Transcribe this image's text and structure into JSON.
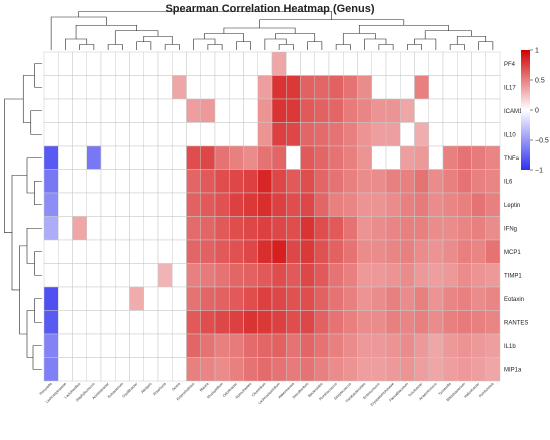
{
  "chart_data": {
    "type": "heatmap",
    "title": "Spearman Correlation Heatmap (Genus)",
    "rows": [
      "PF4",
      "IL17",
      "ICAM1",
      "IL10",
      "TNFa",
      "IL6",
      "Leptin",
      "IFNg",
      "MCP1",
      "TIMP1",
      "Eotaxin",
      "RANTES",
      "IL1b",
      "MIP1a"
    ],
    "columns": [
      "Prevotella",
      "Lachnospiraceae",
      "Lactobacillus",
      "Staphylococcus",
      "Acinetobacter",
      "Eubacterium",
      "Oscillibacter",
      "Alistipes",
      "Roseburia",
      "Dorea",
      "Enterorhabdus",
      "Blautia",
      "Mucispirillum",
      "Odoribacter",
      "Spirochaetes",
      "Clostridium",
      "Lachnoclostridium",
      "Akkermansia",
      "Desulfovibrio",
      "Bacteroides",
      "Ruminococcus",
      "Streptococcus",
      "Parabacteroides",
      "Enterococcus",
      "Erysipelotrichaceae",
      "Faecalibaculum",
      "Turicibacter",
      "Anaerotruncus",
      "Tyzzerella",
      "Bifidobacterium",
      "Helicobacter",
      "Romboutsia"
    ],
    "values": [
      [
        0,
        0,
        0,
        0,
        0,
        0,
        0,
        0,
        0,
        0,
        0,
        0,
        0,
        0,
        0,
        0,
        0.35,
        0,
        0,
        0,
        0,
        0,
        0,
        0,
        0,
        0,
        0,
        0,
        0,
        0,
        0,
        0
      ],
      [
        0,
        0,
        0,
        0,
        0,
        0,
        0,
        0,
        0,
        0.35,
        0,
        0,
        0,
        0,
        0,
        0.38,
        0.8,
        0.78,
        0.62,
        0.6,
        0.62,
        0.55,
        0.45,
        0,
        0,
        0,
        0.5,
        0,
        0,
        0,
        0,
        0
      ],
      [
        0,
        0,
        0,
        0,
        0,
        0,
        0,
        0,
        0,
        0,
        0.38,
        0.4,
        0,
        0,
        0,
        0.42,
        0.8,
        0.78,
        0.65,
        0.62,
        0.6,
        0.52,
        0.48,
        0.42,
        0.42,
        0.35,
        0,
        0,
        0,
        0,
        0,
        0
      ],
      [
        0,
        0,
        0,
        0,
        0,
        0,
        0,
        0,
        0,
        0,
        0,
        0,
        0,
        0,
        0,
        0.42,
        0.75,
        0.72,
        0.6,
        0.58,
        0.55,
        0.5,
        0.42,
        0.38,
        0.38,
        0,
        0.32,
        0,
        0,
        0,
        0,
        0
      ],
      [
        -0.8,
        0,
        0,
        -0.65,
        0,
        0,
        0,
        0,
        0,
        0,
        0.7,
        0.72,
        0.55,
        0.5,
        0.45,
        0.55,
        0.6,
        0,
        0.65,
        0.6,
        0.55,
        0.5,
        0.42,
        0,
        0,
        0.38,
        0.4,
        0,
        0.5,
        0.55,
        0.52,
        0.48
      ],
      [
        -0.65,
        0,
        0,
        0,
        0,
        0,
        0,
        0,
        0,
        0,
        0.6,
        0.65,
        0.7,
        0.72,
        0.75,
        0.85,
        0.72,
        0.65,
        0.7,
        0.6,
        0.55,
        0.5,
        0.45,
        0.45,
        0.5,
        0.5,
        0.55,
        0.45,
        0.5,
        0.55,
        0.5,
        0.48
      ],
      [
        -0.55,
        0,
        0,
        0,
        0,
        0,
        0,
        0,
        0,
        0,
        0.62,
        0.65,
        0.68,
        0.75,
        0.78,
        0.82,
        0.75,
        0.7,
        0.72,
        0.6,
        0.5,
        0.48,
        0.42,
        0.42,
        0.45,
        0.5,
        0.52,
        0.45,
        0.48,
        0.5,
        0.55,
        0.5
      ],
      [
        -0.4,
        0,
        0.35,
        0,
        0,
        0,
        0,
        0,
        0,
        0,
        0.58,
        0.6,
        0.65,
        0.7,
        0.72,
        0.75,
        0.72,
        0.7,
        0.8,
        0.7,
        0.65,
        0.55,
        0.42,
        0.45,
        0.48,
        0.5,
        0.5,
        0.45,
        0.45,
        0.48,
        0.5,
        0.45
      ],
      [
        0,
        0,
        0,
        0,
        0,
        0,
        0,
        0,
        0,
        0,
        0.6,
        0.62,
        0.65,
        0.68,
        0.72,
        0.82,
        0.88,
        0.72,
        0.78,
        0.68,
        0.62,
        0.55,
        0.45,
        0.45,
        0.48,
        0.5,
        0.45,
        0.42,
        0.45,
        0.5,
        0.48,
        0.55
      ],
      [
        0,
        0,
        0,
        0,
        0,
        0,
        0,
        0,
        0.3,
        0,
        0.5,
        0.52,
        0.55,
        0.6,
        0.62,
        0.65,
        0.7,
        0.65,
        0.72,
        0.65,
        0.55,
        0.5,
        0.4,
        0.4,
        0.42,
        0.45,
        0.4,
        0.38,
        0.4,
        0.45,
        0.42,
        0.4
      ],
      [
        -0.85,
        0,
        0,
        0,
        0,
        0,
        0.32,
        0,
        0,
        0,
        0.55,
        0.6,
        0.62,
        0.65,
        0.7,
        0.75,
        0.72,
        0.68,
        0.7,
        0.62,
        0.55,
        0.5,
        0.42,
        0.45,
        0.5,
        0.45,
        0.5,
        0.42,
        0.48,
        0.5,
        0.45,
        0.48
      ],
      [
        -0.8,
        0,
        0,
        0,
        0,
        0,
        0,
        0,
        0,
        0,
        0.65,
        0.7,
        0.72,
        0.75,
        0.8,
        0.78,
        0.75,
        0.7,
        0.72,
        0.62,
        0.55,
        0.5,
        0.45,
        0.45,
        0.5,
        0.48,
        0.5,
        0.45,
        0.5,
        0.52,
        0.5,
        0.48
      ],
      [
        -0.6,
        0,
        0,
        0,
        0,
        0,
        0,
        0,
        0,
        0,
        0.6,
        0.55,
        0.5,
        0.52,
        0.58,
        0.6,
        0.62,
        0.55,
        0.6,
        0.55,
        0.5,
        0.45,
        0.4,
        0.4,
        0.42,
        0.45,
        0.4,
        0.35,
        0.4,
        0.42,
        0.4,
        0.38
      ],
      [
        -0.62,
        0,
        0,
        0,
        0,
        0,
        0,
        0,
        0,
        0,
        0.5,
        0.48,
        0.45,
        0.5,
        0.55,
        0.58,
        0.55,
        0.52,
        0.55,
        0.5,
        0.45,
        0.42,
        0.38,
        0.38,
        0.4,
        0.42,
        0.38,
        0.35,
        0.38,
        0.4,
        0.38,
        0.35
      ]
    ],
    "legend": {
      "placement": "right",
      "ticks": [
        1,
        0.5,
        0,
        -0.5,
        -1
      ],
      "tick_labels": [
        "1",
        "0.5",
        "0",
        "−0.5",
        "−1"
      ]
    },
    "dendrogram": {
      "rows": true,
      "columns": true
    },
    "colors": {
      "negative": "#3030f0",
      "zero": "#ffffff",
      "positive": "#d10000",
      "grid": "#c8c8c8"
    },
    "grid": true
  }
}
